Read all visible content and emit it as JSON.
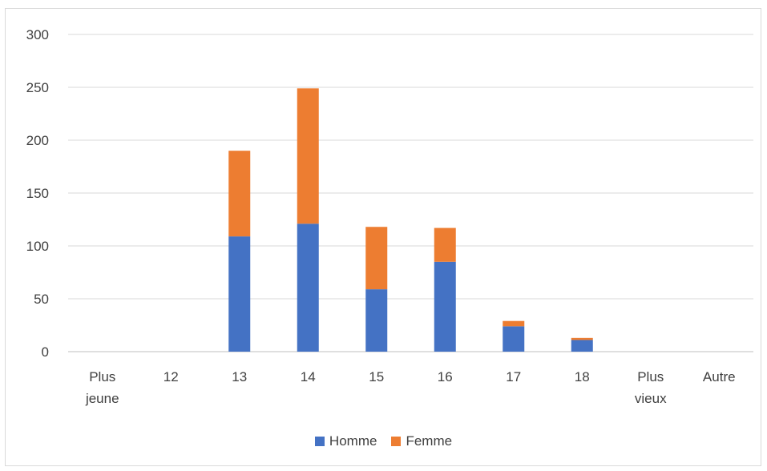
{
  "chart_data": {
    "type": "bar",
    "stacked": true,
    "categories": [
      [
        "Plus",
        "jeune"
      ],
      [
        "12"
      ],
      [
        "13"
      ],
      [
        "14"
      ],
      [
        "15"
      ],
      [
        "16"
      ],
      [
        "17"
      ],
      [
        "18"
      ],
      [
        "Plus",
        "vieux"
      ],
      [
        "Autre"
      ]
    ],
    "series": [
      {
        "name": "Homme",
        "color": "#4472c4",
        "values": [
          0,
          0,
          109,
          121,
          59,
          85,
          24,
          11,
          0,
          0
        ]
      },
      {
        "name": "Femme",
        "color": "#ed7d31",
        "values": [
          0,
          0,
          81,
          128,
          59,
          32,
          5,
          2,
          0,
          0
        ]
      }
    ],
    "yticks": [
      0,
      50,
      100,
      150,
      200,
      250,
      300
    ],
    "ylim": [
      0,
      300
    ],
    "grid": true,
    "legend_position": "bottom"
  }
}
